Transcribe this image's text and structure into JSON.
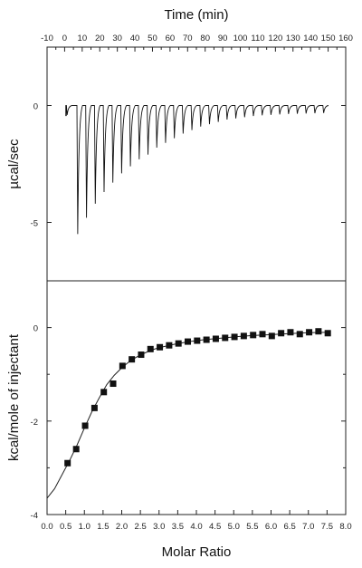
{
  "chart_data": [
    {
      "type": "line",
      "title": "",
      "xlabel": "Time (min)",
      "ylabel": "µcal/sec",
      "xlim": [
        -10,
        160
      ],
      "ylim": [
        -7.5,
        2.5
      ],
      "x_ticks": [
        -10,
        0,
        10,
        20,
        30,
        40,
        50,
        60,
        70,
        80,
        90,
        100,
        110,
        120,
        130,
        140,
        150,
        160
      ],
      "y_ticks": [
        0,
        -5
      ],
      "x_tick_labels": [
        "-10",
        "0",
        "10",
        "20",
        "30",
        "40",
        "50",
        "60",
        "70",
        "80",
        "90",
        "100",
        "110",
        "120",
        "130",
        "140",
        "150",
        "160"
      ],
      "y_tick_labels": [
        "0",
        "-5"
      ],
      "baseline": 0,
      "series": [
        {
          "injection_times": [
            1,
            7,
            12,
            17,
            22,
            27,
            32,
            37,
            42,
            47,
            52,
            57,
            62,
            67,
            72,
            77,
            82,
            87,
            92,
            97,
            102,
            107,
            112,
            117,
            122,
            127,
            132,
            137,
            142,
            147
          ],
          "peak_values": [
            -0.4,
            -5.5,
            -4.8,
            -4.2,
            -3.7,
            -3.3,
            -2.9,
            -2.6,
            -2.3,
            -2.1,
            -1.8,
            -1.6,
            -1.4,
            -1.2,
            -1.05,
            -0.9,
            -0.8,
            -0.7,
            -0.6,
            -0.55,
            -0.5,
            -0.45,
            -0.42,
            -0.4,
            -0.38,
            -0.36,
            -0.35,
            -0.34,
            -0.33,
            -0.32
          ]
        }
      ],
      "grid": false
    },
    {
      "type": "scatter",
      "title": "",
      "xlabel": "Molar Ratio",
      "ylabel": "kcal/mole of injectant",
      "xlim": [
        0.0,
        8.0
      ],
      "ylim": [
        -4,
        1
      ],
      "x_ticks": [
        0.0,
        0.5,
        1.0,
        1.5,
        2.0,
        2.5,
        3.0,
        3.5,
        4.0,
        4.5,
        5.0,
        5.5,
        6.0,
        6.5,
        7.0,
        7.5,
        8.0
      ],
      "y_ticks": [
        0,
        -2,
        -4
      ],
      "x_tick_labels": [
        "0.0",
        "0.5",
        "1.0",
        "1.5",
        "2.0",
        "2.5",
        "3.0",
        "3.5",
        "4.0",
        "4.5",
        "5.0",
        "5.5",
        "6.0",
        "6.5",
        "7.0",
        "7.5",
        "8.0"
      ],
      "y_tick_labels": [
        "0",
        "-2",
        "-4"
      ],
      "series": [
        {
          "points": [
            [
              0.55,
              -2.9
            ],
            [
              0.78,
              -2.6
            ],
            [
              1.02,
              -2.1
            ],
            [
              1.27,
              -1.72
            ],
            [
              1.52,
              -1.38
            ],
            [
              1.77,
              -1.2
            ],
            [
              2.02,
              -0.82
            ],
            [
              2.27,
              -0.68
            ],
            [
              2.52,
              -0.58
            ],
            [
              2.77,
              -0.46
            ],
            [
              3.02,
              -0.42
            ],
            [
              3.27,
              -0.38
            ],
            [
              3.52,
              -0.34
            ],
            [
              3.77,
              -0.3
            ],
            [
              4.02,
              -0.28
            ],
            [
              4.27,
              -0.26
            ],
            [
              4.52,
              -0.24
            ],
            [
              4.77,
              -0.22
            ],
            [
              5.02,
              -0.2
            ],
            [
              5.27,
              -0.18
            ],
            [
              5.52,
              -0.16
            ],
            [
              5.77,
              -0.14
            ],
            [
              6.02,
              -0.18
            ],
            [
              6.27,
              -0.12
            ],
            [
              6.52,
              -0.1
            ],
            [
              6.77,
              -0.14
            ],
            [
              7.02,
              -0.1
            ],
            [
              7.27,
              -0.08
            ],
            [
              7.52,
              -0.12
            ]
          ]
        },
        {
          "fit_curve": [
            [
              0.0,
              -3.65
            ],
            [
              0.2,
              -3.45
            ],
            [
              0.4,
              -3.15
            ],
            [
              0.6,
              -2.85
            ],
            [
              0.8,
              -2.52
            ],
            [
              1.0,
              -2.15
            ],
            [
              1.2,
              -1.8
            ],
            [
              1.4,
              -1.5
            ],
            [
              1.6,
              -1.22
            ],
            [
              1.8,
              -1.02
            ],
            [
              2.0,
              -0.86
            ],
            [
              2.2,
              -0.73
            ],
            [
              2.4,
              -0.63
            ],
            [
              2.6,
              -0.55
            ],
            [
              2.8,
              -0.48
            ],
            [
              3.0,
              -0.43
            ],
            [
              3.4,
              -0.36
            ],
            [
              3.8,
              -0.3
            ],
            [
              4.2,
              -0.26
            ],
            [
              4.6,
              -0.23
            ],
            [
              5.0,
              -0.2
            ],
            [
              5.5,
              -0.17
            ],
            [
              6.0,
              -0.15
            ],
            [
              6.5,
              -0.13
            ],
            [
              7.0,
              -0.11
            ],
            [
              7.6,
              -0.1
            ]
          ]
        }
      ],
      "grid": false
    }
  ]
}
